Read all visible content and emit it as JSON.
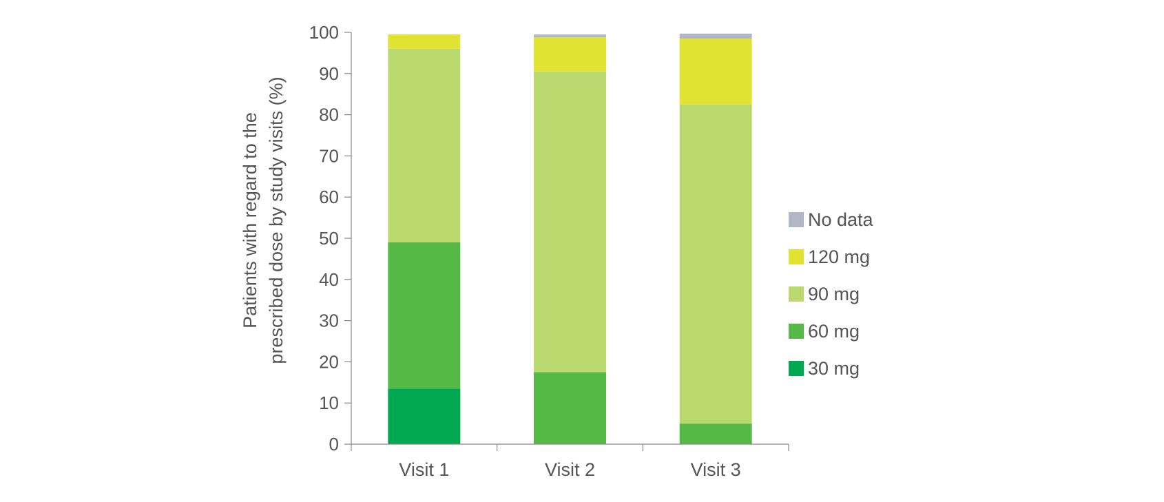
{
  "chart_data": {
    "type": "bar",
    "stacked": true,
    "categories": [
      "Visit 1",
      "Visit 2",
      "Visit 3"
    ],
    "series": [
      {
        "name": "30 mg",
        "color": "#00a94f",
        "values": [
          13.5,
          0,
          0
        ]
      },
      {
        "name": "60 mg",
        "color": "#56b947",
        "values": [
          35.5,
          17.5,
          5
        ]
      },
      {
        "name": "90 mg",
        "color": "#bad96f",
        "values": [
          47,
          73,
          77.5
        ]
      },
      {
        "name": "120 mg",
        "color": "#e1e333",
        "values": [
          3.5,
          8.3,
          16
        ]
      },
      {
        "name": "No data",
        "color": "#b3b6c6",
        "values": [
          0,
          0.7,
          1.2
        ]
      }
    ],
    "ylabel_lines": [
      "Patients with regard to the",
      "prescribed dose by study visits (%)"
    ],
    "xlabel": "",
    "ylim": [
      0,
      100
    ],
    "yticks": [
      0,
      10,
      20,
      30,
      40,
      50,
      60,
      70,
      80,
      90,
      100
    ],
    "legend_position": "right",
    "legend_order": [
      "No data",
      "120 mg",
      "90 mg",
      "60 mg",
      "30 mg"
    ],
    "grid": false
  }
}
